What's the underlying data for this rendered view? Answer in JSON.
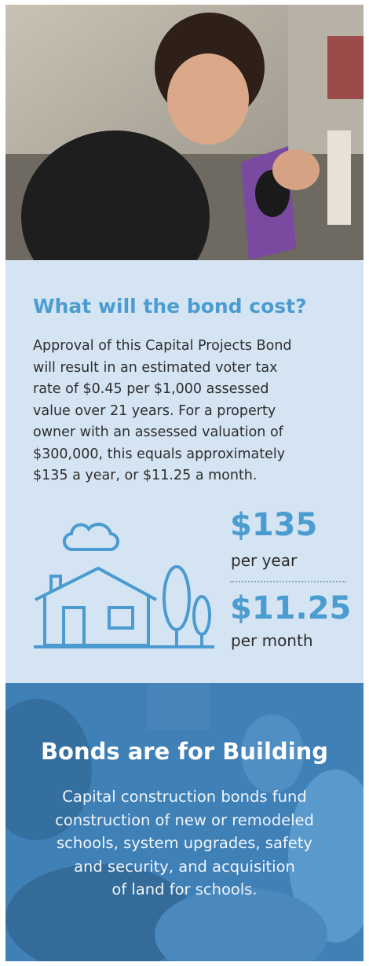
{
  "cost": {
    "title": "What will the bond cost?",
    "body_lines": [
      "Approval of this Capital Projects Bond",
      "will result in an estimated voter tax",
      "rate of $0.45 per $1,000 assessed",
      "value over 21 years. For a property",
      "owner with an assessed valuation of",
      "$300,000, this equals approximately",
      "$135 a year, or $11.25 a month."
    ],
    "yearly": {
      "amount": "$135",
      "label": "per year"
    },
    "monthly": {
      "amount": "$11.25",
      "label": "per month"
    }
  },
  "building": {
    "title": "Bonds are for Building",
    "body_lines": [
      "Capital construction bonds fund",
      "construction of new or remodeled",
      "schools, system upgrades, safety",
      "and security, and acquisition",
      "of land for schools."
    ]
  }
}
